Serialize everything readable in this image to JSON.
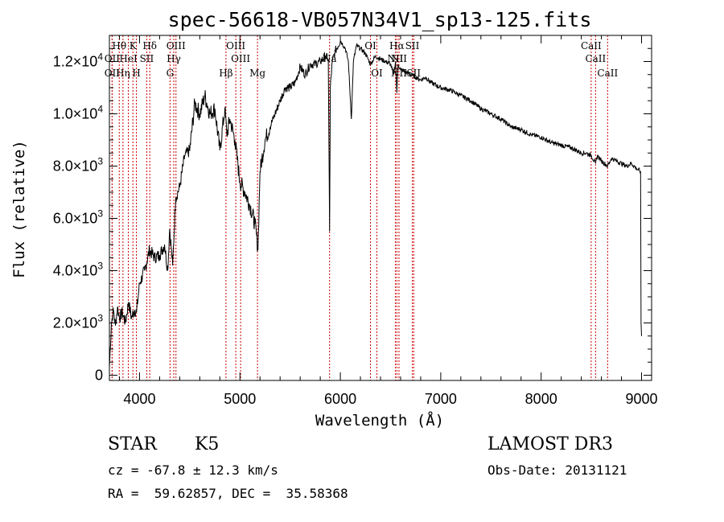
{
  "chart_data": {
    "type": "line",
    "title": "spec-56618-VB057N34V1_sp13-125.fits",
    "xlabel": "Wavelength (Å)",
    "ylabel": "Flux (relative)",
    "xlim": [
      3700,
      9100
    ],
    "ylim": [
      -200,
      13000
    ],
    "x_ticks": [
      4000,
      5000,
      6000,
      7000,
      8000,
      9000
    ],
    "x_tick_labels": [
      "4000",
      "5000",
      "6000",
      "7000",
      "8000",
      "9000"
    ],
    "y_ticks": [
      0,
      2000,
      4000,
      6000,
      8000,
      10000,
      12000
    ],
    "y_tick_labels": [
      {
        "mantissa": "0",
        "exp": ""
      },
      {
        "mantissa": "2.0×10",
        "exp": "3"
      },
      {
        "mantissa": "4.0×10",
        "exp": "3"
      },
      {
        "mantissa": "6.0×10",
        "exp": "3"
      },
      {
        "mantissa": "8.0×10",
        "exp": "3"
      },
      {
        "mantissa": "1.0×10",
        "exp": "4"
      },
      {
        "mantissa": "1.2×10",
        "exp": "4"
      }
    ],
    "series": [
      {
        "name": "spectrum",
        "x": [
          3700,
          3720,
          3740,
          3760,
          3780,
          3800,
          3830,
          3860,
          3890,
          3920,
          3950,
          3970,
          4000,
          4050,
          4100,
          4150,
          4200,
          4250,
          4280,
          4300,
          4330,
          4360,
          4400,
          4450,
          4500,
          4550,
          4600,
          4650,
          4700,
          4750,
          4800,
          4850,
          4870,
          4900,
          4950,
          5000,
          5050,
          5100,
          5150,
          5180,
          5200,
          5250,
          5300,
          5350,
          5400,
          5450,
          5500,
          5550,
          5600,
          5650,
          5700,
          5750,
          5800,
          5850,
          5880,
          5893,
          5900,
          5920,
          5950,
          6000,
          6050,
          6080,
          6100,
          6110,
          6130,
          6160,
          6200,
          6250,
          6300,
          6350,
          6400,
          6450,
          6500,
          6530,
          6550,
          6563,
          6575,
          6600,
          6650,
          6700,
          6750,
          6800,
          6850,
          6900,
          7000,
          7100,
          7200,
          7300,
          7400,
          7500,
          7600,
          7700,
          7800,
          7900,
          8000,
          8100,
          8200,
          8300,
          8400,
          8450,
          8500,
          8542,
          8560,
          8600,
          8662,
          8700,
          8750,
          8800,
          8850,
          8900,
          8950,
          8990,
          8995,
          9000
        ],
        "values": [
          300,
          2000,
          2500,
          1900,
          2600,
          2200,
          2400,
          2000,
          2800,
          2200,
          2500,
          2400,
          3500,
          4000,
          4800,
          4500,
          4600,
          5000,
          4000,
          5600,
          4200,
          6800,
          7200,
          8400,
          8600,
          10400,
          10000,
          10700,
          10000,
          10200,
          8600,
          10200,
          9200,
          9800,
          9000,
          7400,
          7000,
          6500,
          5800,
          4800,
          7800,
          9000,
          9500,
          10000,
          10500,
          11000,
          11000,
          11200,
          11800,
          11500,
          11900,
          11900,
          12000,
          12200,
          12100,
          5500,
          11000,
          12000,
          12400,
          12800,
          12500,
          12000,
          10500,
          9800,
          12000,
          12600,
          12500,
          12300,
          11900,
          12200,
          12100,
          12000,
          11900,
          11500,
          12000,
          10800,
          11900,
          11700,
          11600,
          11500,
          11400,
          11300,
          11400,
          11200,
          11000,
          10900,
          10700,
          10500,
          10200,
          10000,
          9800,
          9500,
          9400,
          9200,
          9100,
          8900,
          8800,
          8700,
          8500,
          8500,
          8400,
          8100,
          8400,
          8200,
          8000,
          8300,
          8200,
          8100,
          8000,
          8100,
          7900,
          7800,
          2000,
          1500
        ]
      }
    ],
    "spectral_lines": [
      {
        "label": "Hθ",
        "x": 3798,
        "row": 1
      },
      {
        "label": "OII",
        "x": 3727,
        "row": 2
      },
      {
        "label": "OII",
        "x": 3727,
        "row": 3
      },
      {
        "label": "Hη",
        "x": 3835,
        "row": 3
      },
      {
        "label": "HeI",
        "x": 3889,
        "row": 2
      },
      {
        "label": "K",
        "x": 3934,
        "row": 1
      },
      {
        "label": "H",
        "x": 3969,
        "row": 3
      },
      {
        "label": "Hδ",
        "x": 4102,
        "row": 1
      },
      {
        "label": "SII",
        "x": 4072,
        "row": 2
      },
      {
        "label": "OIII",
        "x": 4363,
        "row": 1
      },
      {
        "label": "Hγ",
        "x": 4341,
        "row": 2
      },
      {
        "label": "G",
        "x": 4304,
        "row": 3
      },
      {
        "label": "Hβ",
        "x": 4861,
        "row": 3
      },
      {
        "label": "OIII",
        "x": 4959,
        "row": 1
      },
      {
        "label": "OIII",
        "x": 5007,
        "row": 2
      },
      {
        "label": "Mg",
        "x": 5175,
        "row": 3
      },
      {
        "label": "Na",
        "x": 5893,
        "row": 2
      },
      {
        "label": "OI",
        "x": 6300,
        "row": 1
      },
      {
        "label": "OI",
        "x": 6364,
        "row": 3
      },
      {
        "label": "Hα",
        "x": 6563,
        "row": 1
      },
      {
        "label": "NII",
        "x": 6548,
        "row": 2
      },
      {
        "label": "NII",
        "x": 6584,
        "row": 3
      },
      {
        "label": "NII",
        "x": 6584,
        "row": 2
      },
      {
        "label": "SII",
        "x": 6717,
        "row": 1
      },
      {
        "label": "SII",
        "x": 6731,
        "row": 3
      },
      {
        "label": "CaII",
        "x": 8498,
        "row": 1
      },
      {
        "label": "CaII",
        "x": 8542,
        "row": 2
      },
      {
        "label": "CaII",
        "x": 8662,
        "row": 3
      }
    ]
  },
  "info": {
    "object_type": "STAR",
    "subclass": "K5",
    "survey": "LAMOST DR3",
    "redshift": "cz = -67.8 ± 12.3 km/s",
    "obs_date": "Obs-Date: 20131121",
    "coords": "RA =  59.62857, DEC =  35.58368"
  },
  "colors": {
    "line": "#000000",
    "marker": "#cc0000",
    "background": "#ffffff"
  }
}
